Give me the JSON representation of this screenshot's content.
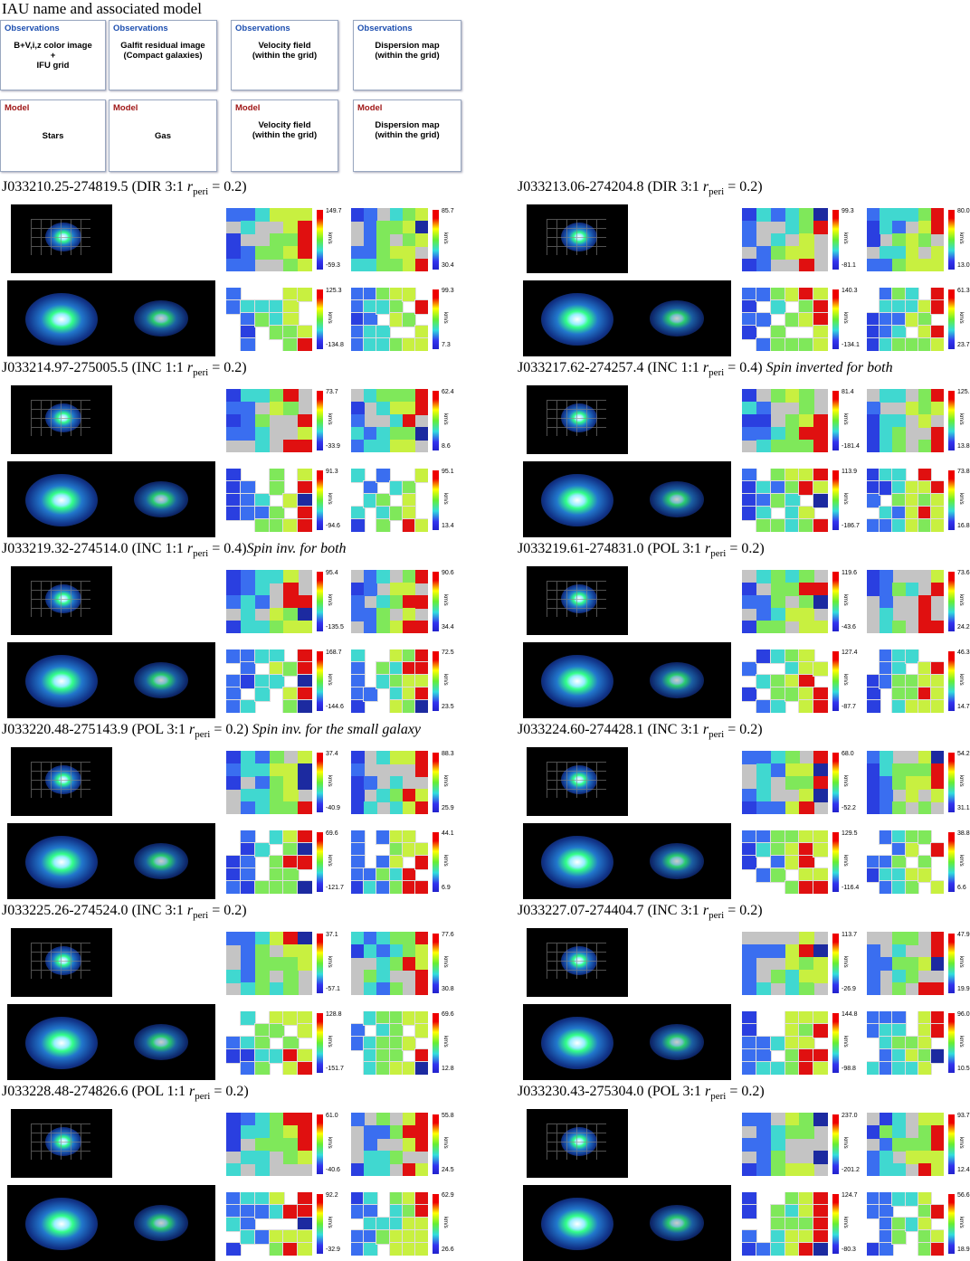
{
  "header": {
    "title": "IAU name and associated model"
  },
  "legend": {
    "observations": [
      {
        "head": "Observations",
        "lines": [
          "B+V,i,z color image",
          "+",
          "IFU grid"
        ]
      },
      {
        "head": "Observations",
        "lines": [
          "Galfit residual image",
          "(Compact galaxies)"
        ]
      },
      {
        "head": "Observations",
        "lines": [
          "Velocity field",
          "(within the grid)"
        ]
      },
      {
        "head": "Observations",
        "lines": [
          "Dispersion map",
          "(within the grid)"
        ]
      }
    ],
    "models": [
      {
        "head": "Model",
        "lines": [
          "Stars"
        ]
      },
      {
        "head": "Model",
        "lines": [
          "Gas"
        ]
      },
      {
        "head": "Model",
        "lines": [
          "Velocity field",
          "(within the grid)"
        ]
      },
      {
        "head": "Model",
        "lines": [
          "Dispersion map",
          "(within the grid)"
        ]
      }
    ]
  },
  "r_symbol": "r",
  "r_subscript": "peri",
  "unit": "km/s",
  "panels": [
    {
      "name": "J033210.25-274819.5",
      "model": "(DIR 3:1",
      "rperi": "= 0.2)",
      "note": null,
      "scales": [
        [
          "149.7",
          "-59.3"
        ],
        [
          "85.7",
          "30.4"
        ],
        [
          "125.3",
          "-134.8"
        ],
        [
          "99.3",
          "7.3"
        ]
      ]
    },
    {
      "name": "J033213.06-274204.8",
      "model": "(DIR 3:1",
      "rperi": "= 0.2)",
      "note": null,
      "scales": [
        [
          "99.3",
          "-81.1"
        ],
        [
          "80.0",
          "13.0"
        ],
        [
          "140.3",
          "-134.1"
        ],
        [
          "61.3",
          "23.7"
        ]
      ]
    },
    {
      "name": "J033214.97-275005.5",
      "model": "(INC 1:1",
      "rperi": "= 0.2)",
      "note": null,
      "scales": [
        [
          "73.7",
          "-33.9"
        ],
        [
          "62.4",
          "8.6"
        ],
        [
          "91.3",
          "-94.6"
        ],
        [
          "95.1",
          "13.4"
        ]
      ]
    },
    {
      "name": "J033217.62-274257.4",
      "model": "(INC 1:1",
      "rperi": "= 0.4)",
      "note": "Spin inverted for both",
      "scales": [
        [
          "81.4",
          "-181.4"
        ],
        [
          "125.3",
          "13.8"
        ],
        [
          "113.9",
          "-186.7"
        ],
        [
          "73.8",
          "16.8"
        ]
      ]
    },
    {
      "name": "J033219.32-274514.0",
      "model": "(INC 1:1",
      "rperi": "= 0.4)",
      "note": "Spin inv. for both",
      "scales": [
        [
          "95.4",
          "-135.5"
        ],
        [
          "90.6",
          "34.4"
        ],
        [
          "168.7",
          "-144.6"
        ],
        [
          "72.5",
          "23.5"
        ]
      ]
    },
    {
      "name": "J033219.61-274831.0",
      "model": "(POL 3:1",
      "rperi": "= 0.2)",
      "note": null,
      "scales": [
        [
          "119.6",
          "-43.6"
        ],
        [
          "73.6",
          "24.2"
        ],
        [
          "127.4",
          "-87.7"
        ],
        [
          "46.3",
          "14.7"
        ]
      ]
    },
    {
      "name": "J033220.48-275143.9",
      "model": "(POL 3:1",
      "rperi": "= 0.2)",
      "note": "Spin inv. for the small galaxy",
      "scales": [
        [
          "37.4",
          "-40.9"
        ],
        [
          "88.3",
          "25.9"
        ],
        [
          "69.6",
          "-121.7"
        ],
        [
          "44.1",
          "6.9"
        ]
      ]
    },
    {
      "name": "J033224.60-274428.1",
      "model": "(INC 3:1",
      "rperi": "= 0.2)",
      "note": null,
      "scales": [
        [
          "68.0",
          "-52.2"
        ],
        [
          "54.2",
          "31.1"
        ],
        [
          "129.5",
          "-116.4"
        ],
        [
          "38.8",
          "6.6"
        ]
      ]
    },
    {
      "name": "J033225.26-274524.0",
      "model": "(INC 3:1",
      "rperi": "= 0.2)",
      "note": null,
      "scales": [
        [
          "37.1",
          "-57.1"
        ],
        [
          "77.6",
          "30.8"
        ],
        [
          "128.8",
          "-151.7"
        ],
        [
          "69.6",
          "12.8"
        ]
      ]
    },
    {
      "name": "J033227.07-274404.7",
      "model": "(INC 3:1",
      "rperi": "= 0.2)",
      "note": null,
      "scales": [
        [
          "113.7",
          "-26.9"
        ],
        [
          "47.9",
          "19.9"
        ],
        [
          "144.8",
          "-98.8"
        ],
        [
          "96.0",
          "10.5"
        ]
      ]
    },
    {
      "name": "J033228.48-274826.6",
      "model": "(POL 1:1",
      "rperi": "= 0.2)",
      "note": null,
      "scales": [
        [
          "61.0",
          "-40.6"
        ],
        [
          "55.8",
          "24.5"
        ],
        [
          "92.2",
          "-32.9"
        ],
        [
          "62.9",
          "26.6"
        ]
      ]
    },
    {
      "name": "J033230.43-275304.0",
      "model": "(POL 3:1",
      "rperi": "= 0.2)",
      "note": null,
      "scales": [
        [
          "237.0",
          "-201.2"
        ],
        [
          "93.7",
          "12.4"
        ],
        [
          "124.7",
          "-80.3"
        ],
        [
          "56.6",
          "18.9"
        ]
      ]
    }
  ]
}
